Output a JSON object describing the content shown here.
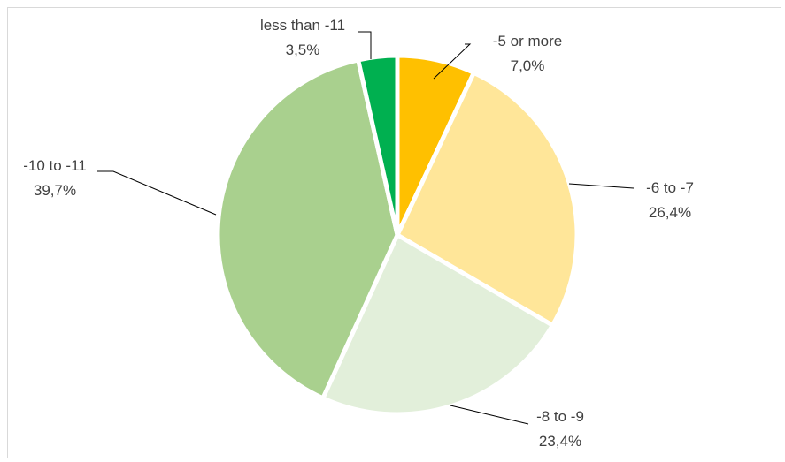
{
  "chart_data": {
    "type": "pie",
    "title": "",
    "start_angle_deg": 0,
    "direction": "clockwise",
    "legend": "none",
    "slices": [
      {
        "label": "-5 or more",
        "value": 7.0,
        "value_label": "7,0%",
        "color": "#FFC000"
      },
      {
        "label": "-6 to -7",
        "value": 26.4,
        "value_label": "26,4%",
        "color": "#FFE699"
      },
      {
        "label": "-8 to -9",
        "value": 23.4,
        "value_label": "23,4%",
        "color": "#E2EFDA"
      },
      {
        "label": "-10 to -11",
        "value": 39.7,
        "value_label": "39,7%",
        "color": "#A9D08E"
      },
      {
        "label": "less than -11",
        "value": 3.5,
        "value_label": "3,5%",
        "color": "#00B050"
      }
    ]
  }
}
